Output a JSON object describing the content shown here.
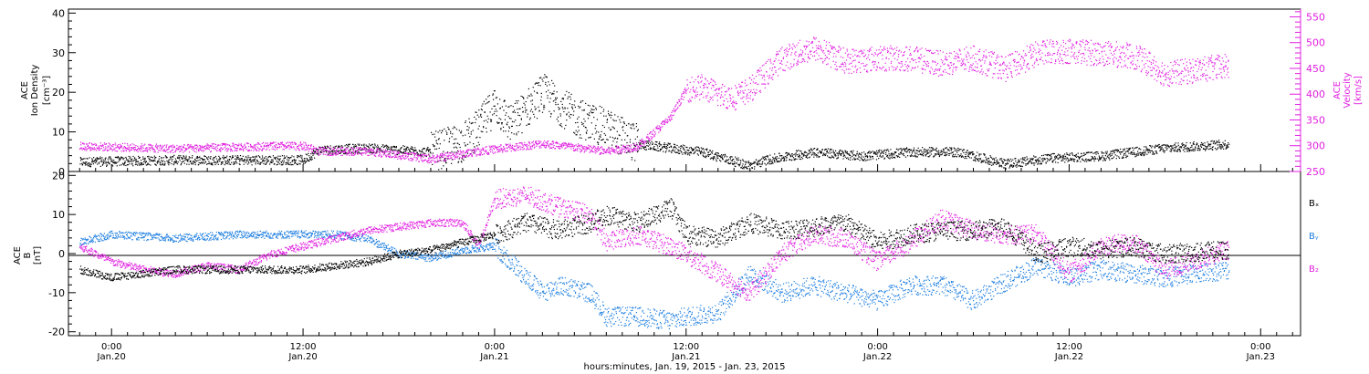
{
  "colors": {
    "black": "#000000",
    "magenta": "#e020e0",
    "blue": "#1f7fe0",
    "axis": "#000000"
  },
  "chart_data": [
    {
      "type": "scatter",
      "panel": "top",
      "ylabel_left": [
        "ACE",
        "Ion Density",
        "[cm⁻³]"
      ],
      "ylabel_right": [
        "ACE",
        "Velocity",
        "[km/s]"
      ],
      "yticks_left": [
        "0",
        "10",
        "20",
        "30",
        "40"
      ],
      "yticks_right": [
        "250",
        "300",
        "350",
        "400",
        "450",
        "500",
        "550"
      ],
      "ylim_left": [
        0,
        41
      ],
      "ylim_right": [
        250,
        565
      ],
      "series": [
        {
          "color": "black",
          "axis": "left",
          "x": [
            -2,
            4,
            10,
            12,
            13,
            16,
            20,
            22,
            23,
            24,
            25,
            27,
            29,
            31,
            33,
            35,
            37,
            40,
            41,
            44,
            47,
            50,
            53,
            56,
            59,
            62,
            66,
            70
          ],
          "y": [
            2.5,
            3,
            3,
            3,
            5.5,
            6,
            5,
            7.5,
            11,
            17,
            12,
            20,
            14,
            11,
            7,
            6,
            5,
            1.5,
            3,
            5,
            4,
            5,
            5,
            2,
            3.5,
            4,
            6,
            7
          ]
        },
        {
          "color": "magenta",
          "axis": "right",
          "x": [
            -2,
            4,
            10,
            12,
            13,
            16,
            20,
            23,
            27,
            31,
            33,
            35,
            36,
            37,
            38,
            39,
            40,
            42,
            44,
            46,
            48,
            50,
            52,
            54,
            56,
            58,
            60,
            62,
            64,
            65,
            66,
            70
          ],
          "y": [
            300,
            295,
            300,
            300,
            290,
            290,
            275,
            290,
            305,
            290,
            300,
            355,
            410,
            415,
            400,
            395,
            410,
            470,
            490,
            465,
            470,
            470,
            460,
            470,
            450,
            480,
            485,
            480,
            475,
            460,
            440,
            455
          ]
        }
      ]
    },
    {
      "type": "scatter",
      "panel": "bottom",
      "ylabel_left": [
        "ACE",
        "B",
        "[nT]"
      ],
      "yticks_left": [
        "-20",
        "-10",
        "0",
        "10",
        "20"
      ],
      "ylim_left": [
        -21,
        21
      ],
      "legend": [
        "Bₓ",
        "Bᵧ",
        "B₂"
      ],
      "series": [
        {
          "name": "Bₓ",
          "color": "black",
          "x": [
            -2,
            0,
            4,
            8,
            12,
            14,
            16,
            18,
            20,
            22,
            24,
            26,
            28,
            30,
            31,
            33,
            35,
            36,
            38,
            40,
            42,
            44,
            46,
            48,
            50,
            52,
            54,
            56,
            58,
            60,
            62,
            64,
            66,
            70
          ],
          "y": [
            -4,
            -6,
            -4,
            -4,
            -4,
            -3,
            -2,
            0,
            1,
            3,
            5,
            8,
            6,
            8,
            10,
            8,
            12,
            5,
            4,
            8,
            6,
            7,
            8,
            3,
            5,
            6,
            6,
            7,
            0,
            2,
            1,
            2,
            0,
            1
          ]
        },
        {
          "name": "Bᵧ",
          "color": "blue",
          "x": [
            -2,
            0,
            4,
            8,
            12,
            14,
            16,
            18,
            20,
            22,
            24,
            26,
            27,
            28,
            30,
            31,
            33,
            35,
            36,
            38,
            40,
            42,
            44,
            46,
            48,
            50,
            52,
            54,
            56,
            58,
            60,
            62,
            64,
            66,
            70
          ],
          "y": [
            3,
            5,
            4,
            5,
            5,
            5,
            4,
            0,
            -1,
            1,
            2,
            -6,
            -10,
            -8,
            -10,
            -16,
            -16,
            -17,
            -16,
            -15,
            -5,
            -10,
            -8,
            -10,
            -12,
            -8,
            -8,
            -12,
            -7,
            -3,
            -6,
            -4,
            -5,
            -6,
            -4
          ]
        },
        {
          "name": "B₂",
          "color": "magenta",
          "x": [
            -2,
            0,
            2,
            4,
            6,
            8,
            10,
            12,
            14,
            16,
            18,
            20,
            22,
            23,
            24,
            26,
            28,
            30,
            31,
            33,
            35,
            36,
            38,
            40,
            42,
            44,
            46,
            48,
            50,
            52,
            54,
            56,
            58,
            60,
            62,
            64,
            66,
            70
          ],
          "y": [
            2,
            -2,
            -4,
            -5,
            -3,
            -4,
            0,
            2,
            4,
            6,
            7,
            8,
            8,
            2,
            14,
            15,
            12,
            10,
            3,
            5,
            2,
            0,
            -5,
            -10,
            0,
            5,
            4,
            -2,
            3,
            9,
            6,
            5,
            5,
            -5,
            2,
            3,
            -4,
            1
          ]
        }
      ]
    }
  ],
  "x_axis": {
    "ticks": [
      {
        "hours": 0,
        "time": "0:00",
        "date": "Jan.20"
      },
      {
        "hours": 12,
        "time": "12:00",
        "date": "Jan.20"
      },
      {
        "hours": 24,
        "time": "0:00",
        "date": "Jan.21"
      },
      {
        "hours": 36,
        "time": "12:00",
        "date": "Jan.21"
      },
      {
        "hours": 48,
        "time": "0:00",
        "date": "Jan.22"
      },
      {
        "hours": 60,
        "time": "12:00",
        "date": "Jan.22"
      },
      {
        "hours": 72,
        "time": "0:00",
        "date": "Jan.23"
      }
    ],
    "xlim_hours": [
      -2.7,
      74.5
    ],
    "minor_step_hours": 1,
    "title": "hours:minutes, Jan. 19, 2015 - Jan. 23, 2015"
  }
}
